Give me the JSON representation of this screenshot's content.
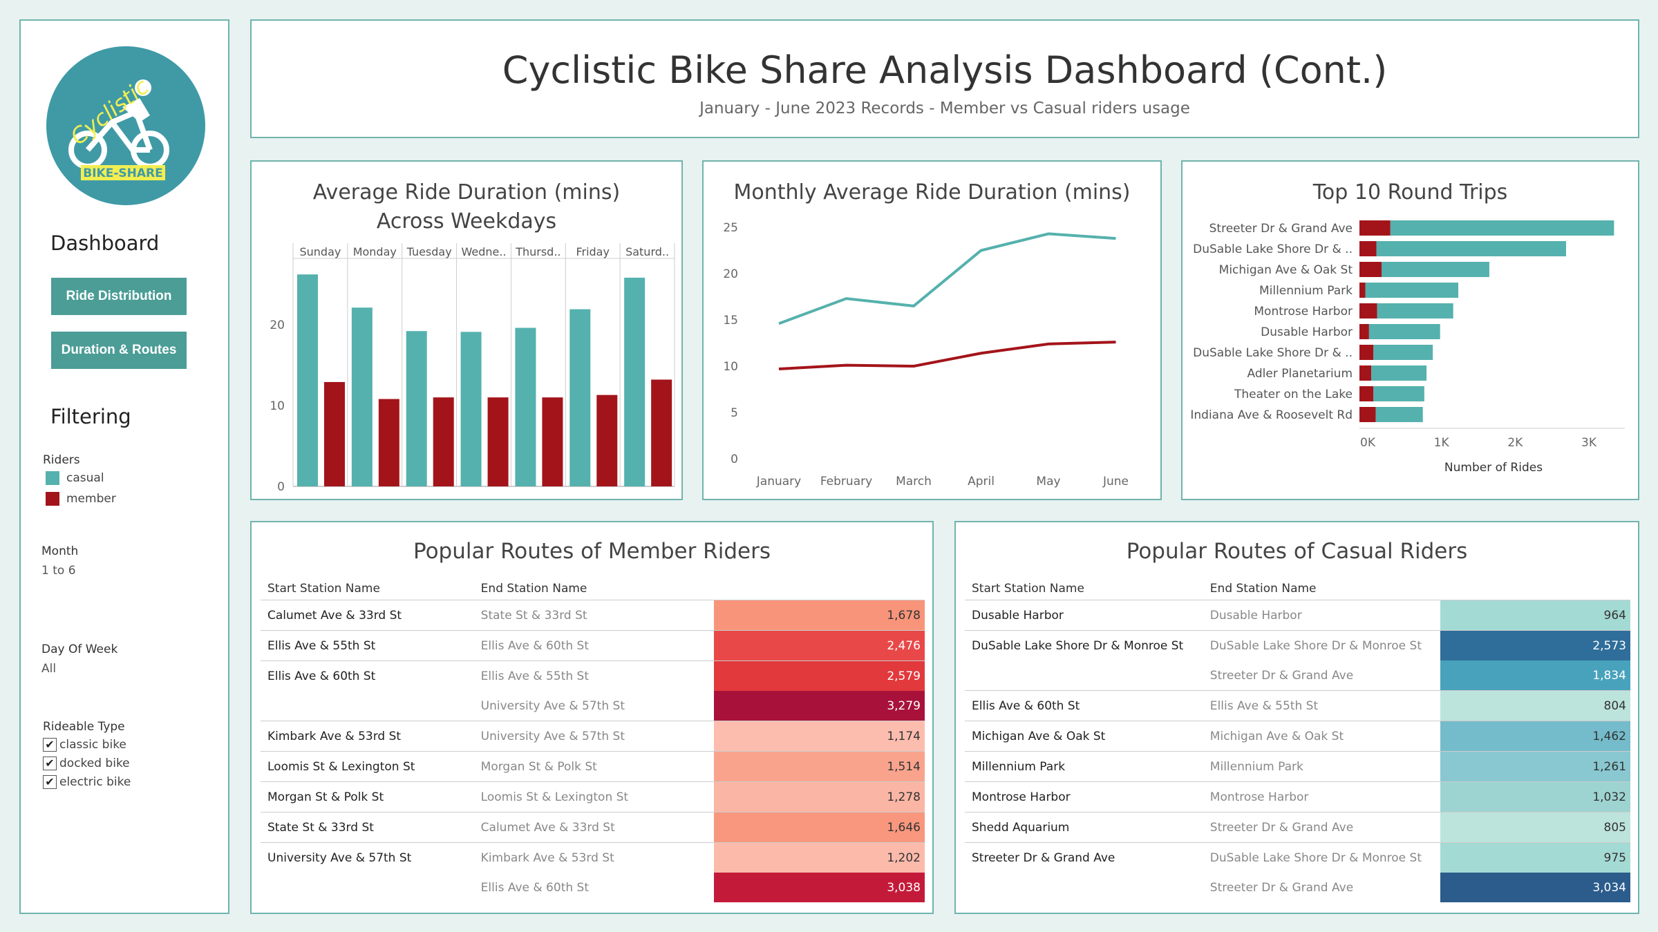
{
  "colors": {
    "casual": "#55b1ad",
    "member": "#a3141a",
    "accent": "#4b9d96",
    "border": "#6fb3ad"
  },
  "logo": {
    "line1": "Cyclistic",
    "line2": "BIKE-SHARE",
    "icon": "bicycle-rider-icon"
  },
  "sidebar": {
    "dashboard_heading": "Dashboard",
    "buttons": [
      "Ride Distribution",
      "Duration & Routes"
    ],
    "filtering_heading": "Filtering",
    "riders_label": "Riders",
    "legend": [
      {
        "label": "casual",
        "color": "#55b1ad"
      },
      {
        "label": "member",
        "color": "#a3141a"
      }
    ],
    "month_label": "Month",
    "month_value": "1 to 6",
    "dow_label": "Day Of Week",
    "dow_value": "All",
    "rideable_label": "Rideable Type",
    "rideable_options": [
      "classic bike",
      "docked bike",
      "electric bike"
    ]
  },
  "header": {
    "title": "Cyclistic Bike Share Analysis Dashboard (Cont.)",
    "subtitle": "January - June 2023 Records - Member vs Casual riders usage"
  },
  "chart_data": [
    {
      "type": "bar",
      "title": "Average Ride Duration (mins) Across Weekdays",
      "title_line1": "Average Ride Duration (mins)",
      "title_line2": "Across Weekdays",
      "categories": [
        "Sunday",
        "Monday",
        "Tuesday",
        "Wedne..",
        "Thursd..",
        "Friday",
        "Saturd.."
      ],
      "series": [
        {
          "name": "casual",
          "values": [
            26.2,
            22.1,
            19.2,
            19.1,
            19.6,
            21.9,
            25.8
          ]
        },
        {
          "name": "member",
          "values": [
            12.9,
            10.8,
            11.0,
            11.0,
            11.0,
            11.3,
            13.2
          ]
        }
      ],
      "yticks": [
        0,
        10,
        20
      ],
      "ylim": [
        0,
        27.5
      ],
      "grid": false
    },
    {
      "type": "line",
      "title": "Monthly Average Ride Duration (mins)",
      "x": [
        "January",
        "February",
        "March",
        "April",
        "May",
        "June"
      ],
      "series": [
        {
          "name": "casual",
          "values": [
            14.6,
            17.3,
            16.5,
            22.5,
            24.3,
            23.8
          ]
        },
        {
          "name": "member",
          "values": [
            9.7,
            10.1,
            10.0,
            11.4,
            12.4,
            12.6
          ]
        }
      ],
      "yticks": [
        0,
        5,
        10,
        15,
        20,
        25
      ],
      "ylim": [
        0,
        25
      ],
      "grid": false
    },
    {
      "type": "bar",
      "orientation": "horizontal",
      "title": "Top 10 Round Trips",
      "xlabel": "Number of Rides",
      "categories": [
        "Streeter Dr & Grand Ave",
        "DuSable Lake Shore Dr & ..",
        "Michigan Ave & Oak St",
        "Millennium Park",
        "Montrose Harbor",
        "Dusable Harbor",
        "DuSable Lake Shore Dr & ..",
        "Adler Planetarium",
        "Theater on the Lake",
        "Indiana Ave & Roosevelt Rd"
      ],
      "series": [
        {
          "name": "member",
          "values": [
            420,
            230,
            300,
            80,
            240,
            130,
            190,
            160,
            190,
            220
          ]
        },
        {
          "name": "casual",
          "values": [
            3034,
            2573,
            1462,
            1261,
            1032,
            964,
            805,
            750,
            690,
            640
          ]
        }
      ],
      "stacked": true,
      "xticks": [
        {
          "v": 0,
          "label": "0K"
        },
        {
          "v": 1000,
          "label": "1K"
        },
        {
          "v": 2000,
          "label": "2K"
        },
        {
          "v": 3000,
          "label": "3K"
        }
      ],
      "xlim": [
        0,
        3600
      ]
    }
  ],
  "member_routes": {
    "title": "Popular Routes of Member Riders",
    "headers": [
      "Start Station Name",
      "End Station Name"
    ],
    "rows": [
      {
        "start": "Calumet Ave & 33rd St",
        "end": "State St & 33rd St",
        "value": "1,678",
        "color": "#f8947a",
        "text": "#333",
        "grp": true
      },
      {
        "start": "Ellis Ave & 55th St",
        "end": "Ellis Ave & 60th St",
        "value": "2,476",
        "color": "#e94848",
        "text": "#fff",
        "grp": true
      },
      {
        "start": "Ellis Ave & 60th St",
        "end": "Ellis Ave & 55th St",
        "value": "2,579",
        "color": "#e2393d",
        "text": "#fff",
        "grp": true
      },
      {
        "start": "",
        "end": "University Ave & 57th St",
        "value": "3,279",
        "color": "#a8123a",
        "text": "#fff",
        "grp": false
      },
      {
        "start": "Kimbark Ave & 53rd St",
        "end": "University Ave & 57th St",
        "value": "1,174",
        "color": "#fcbdaf",
        "text": "#333",
        "grp": true
      },
      {
        "start": "Loomis St & Lexington St",
        "end": "Morgan St & Polk St",
        "value": "1,514",
        "color": "#f9a38d",
        "text": "#333",
        "grp": true
      },
      {
        "start": "Morgan St & Polk St",
        "end": "Loomis St & Lexington St",
        "value": "1,278",
        "color": "#fbb5a4",
        "text": "#333",
        "grp": true
      },
      {
        "start": "State St & 33rd St",
        "end": "Calumet Ave & 33rd St",
        "value": "1,646",
        "color": "#f8977d",
        "text": "#333",
        "grp": true
      },
      {
        "start": "University Ave & 57th St",
        "end": "Kimbark Ave & 53rd St",
        "value": "1,202",
        "color": "#fcbaab",
        "text": "#333",
        "grp": true
      },
      {
        "start": "",
        "end": "Ellis Ave & 60th St",
        "value": "3,038",
        "color": "#c41a3a",
        "text": "#fff",
        "grp": false
      }
    ]
  },
  "casual_routes": {
    "title": "Popular Routes of Casual Riders",
    "headers": [
      "Start Station Name",
      "End Station Name"
    ],
    "rows": [
      {
        "start": "Dusable Harbor",
        "end": "Dusable Harbor",
        "value": "964",
        "color": "#a4dad4",
        "text": "#333",
        "grp": true
      },
      {
        "start": "DuSable Lake Shore Dr & Monroe St",
        "end": "DuSable Lake Shore Dr & Monroe St",
        "value": "2,573",
        "color": "#2f6e9b",
        "text": "#fff",
        "grp": true
      },
      {
        "start": "",
        "end": "Streeter Dr & Grand Ave",
        "value": "1,834",
        "color": "#48a2bc",
        "text": "#fff",
        "grp": false
      },
      {
        "start": "Ellis Ave & 60th St",
        "end": "Ellis Ave & 55th St",
        "value": "804",
        "color": "#bde4dc",
        "text": "#333",
        "grp": true
      },
      {
        "start": "Michigan Ave & Oak St",
        "end": "Michigan Ave & Oak St",
        "value": "1,462",
        "color": "#74bccb",
        "text": "#333",
        "grp": true
      },
      {
        "start": "Millennium Park",
        "end": "Millennium Park",
        "value": "1,261",
        "color": "#89c8d0",
        "text": "#333",
        "grp": true
      },
      {
        "start": "Montrose Harbor",
        "end": "Montrose Harbor",
        "value": "1,032",
        "color": "#9dd4d2",
        "text": "#333",
        "grp": true
      },
      {
        "start": "Shedd Aquarium",
        "end": "Streeter Dr & Grand Ave",
        "value": "805",
        "color": "#bde4dc",
        "text": "#333",
        "grp": true
      },
      {
        "start": "Streeter Dr & Grand Ave",
        "end": "DuSable Lake Shore Dr & Monroe St",
        "value": "975",
        "color": "#a4dad4",
        "text": "#333",
        "grp": true
      },
      {
        "start": "",
        "end": "Streeter Dr & Grand Ave",
        "value": "3,034",
        "color": "#2b5c8c",
        "text": "#fff",
        "grp": false
      }
    ]
  }
}
